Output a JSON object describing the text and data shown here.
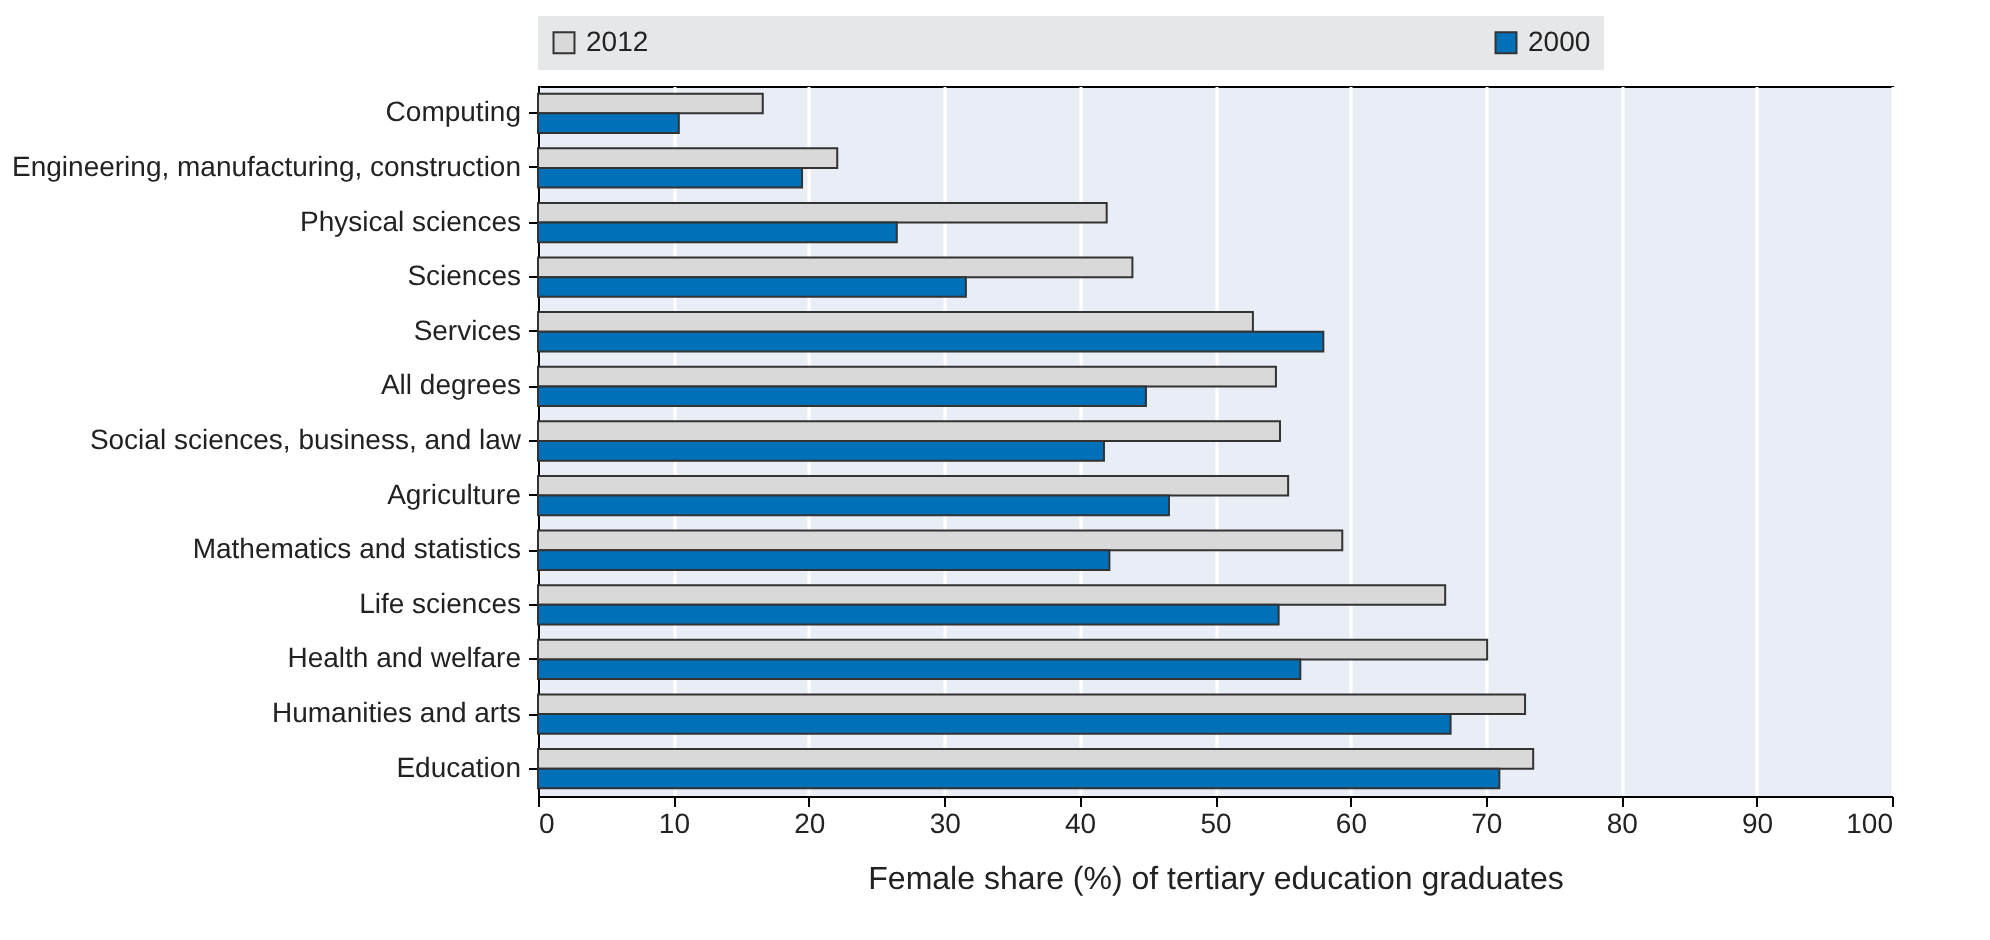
{
  "chart_data": {
    "type": "bar",
    "orientation": "horizontal",
    "xlabel": "Female share (%) of tertiary education graduates",
    "categories": [
      "Computing",
      "Engineering, manufacturing, construction",
      "Physical sciences",
      "Sciences",
      "Services",
      "All degrees",
      "Social sciences, business, and law",
      "Agriculture",
      "Mathematics and statistics",
      "Life sciences",
      "Health and welfare",
      "Humanities and arts",
      "Education"
    ],
    "series": [
      {
        "name": "2012",
        "color": "#d9d9d9",
        "values": [
          16.6,
          22.1,
          42.0,
          43.9,
          52.8,
          54.5,
          54.8,
          55.4,
          59.4,
          67.0,
          70.1,
          72.9,
          73.5
        ]
      },
      {
        "name": "2000",
        "color": "#0070b8",
        "values": [
          10.4,
          19.5,
          26.5,
          31.6,
          58.0,
          44.9,
          41.8,
          46.6,
          42.2,
          54.7,
          56.3,
          67.4,
          71.0
        ]
      }
    ],
    "xlim": [
      0,
      100
    ],
    "xticks": [
      0,
      10,
      20,
      30,
      40,
      50,
      60,
      70,
      80,
      90,
      100
    ],
    "grid": "x",
    "legend": "top"
  }
}
